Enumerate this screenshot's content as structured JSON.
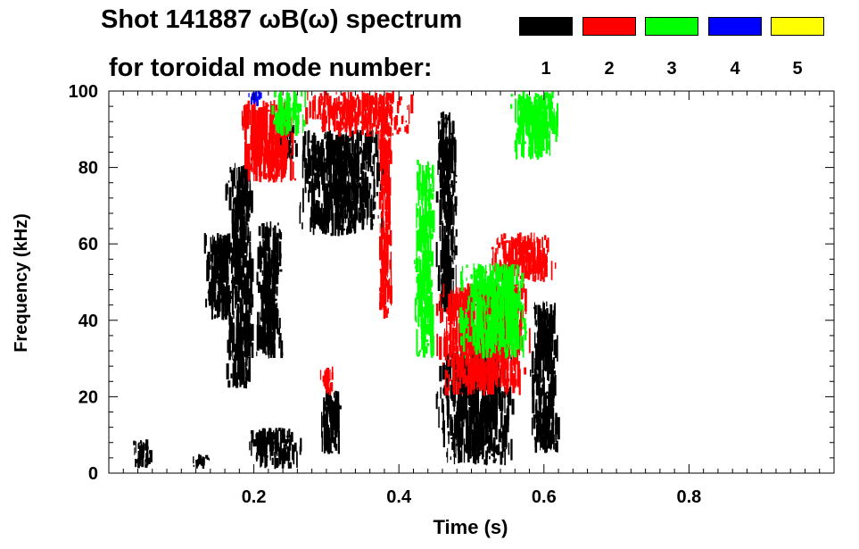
{
  "title_line1": "Shot 141887 ωB(ω) spectrum",
  "title_line2": "for toroidal mode number:",
  "legend": [
    {
      "label": "1",
      "color": "#000000"
    },
    {
      "label": "2",
      "color": "#ff0000"
    },
    {
      "label": "3",
      "color": "#00ff00"
    },
    {
      "label": "4",
      "color": "#0000ff"
    },
    {
      "label": "5",
      "color": "#ffff00"
    }
  ],
  "chart_data": {
    "type": "heatmap",
    "title": "Shot 141887 ωB(ω) spectrum",
    "xlabel": "Time (s)",
    "ylabel": "Frequency (kHz)",
    "xlim": [
      0.0,
      1.0
    ],
    "ylim": [
      0,
      100
    ],
    "xticks": [
      0.2,
      0.4,
      0.6,
      0.8
    ],
    "xtick_labels": [
      "0.2",
      "0.4",
      "0.6",
      "0.8"
    ],
    "yticks": [
      0,
      20,
      40,
      60,
      80,
      100
    ],
    "ytick_labels": [
      "0",
      "20",
      "40",
      "60",
      "80",
      "100"
    ],
    "legend_title": "toroidal mode number",
    "series": [
      {
        "name": "n=1",
        "color": "#000000",
        "regions": [
          {
            "t": [
              0.03,
              0.06
            ],
            "f": [
              1,
              9
            ]
          },
          {
            "t": [
              0.11,
              0.14
            ],
            "f": [
              1,
              5
            ]
          },
          {
            "t": [
              0.13,
              0.17
            ],
            "f": [
              40,
              63
            ]
          },
          {
            "t": [
              0.16,
              0.2
            ],
            "f": [
              22,
              82
            ]
          },
          {
            "t": [
              0.19,
              0.27
            ],
            "f": [
              1,
              12
            ]
          },
          {
            "t": [
              0.2,
              0.24
            ],
            "f": [
              30,
              66
            ]
          },
          {
            "t": [
              0.23,
              0.26
            ],
            "f": [
              82,
              92
            ]
          },
          {
            "t": [
              0.26,
              0.38
            ],
            "f": [
              62,
              90
            ]
          },
          {
            "t": [
              0.29,
              0.32
            ],
            "f": [
              5,
              22
            ]
          },
          {
            "t": [
              0.45,
              0.56
            ],
            "f": [
              2,
              32
            ]
          },
          {
            "t": [
              0.45,
              0.48
            ],
            "f": [
              40,
              95
            ]
          },
          {
            "t": [
              0.58,
              0.62
            ],
            "f": [
              5,
              45
            ]
          }
        ]
      },
      {
        "name": "n=2",
        "color": "#ff0000",
        "regions": [
          {
            "t": [
              0.18,
              0.26
            ],
            "f": [
              76,
              98
            ]
          },
          {
            "t": [
              0.26,
              0.42
            ],
            "f": [
              88,
              100
            ]
          },
          {
            "t": [
              0.29,
              0.31
            ],
            "f": [
              20,
              28
            ]
          },
          {
            "t": [
              0.37,
              0.39
            ],
            "f": [
              40,
              96
            ]
          },
          {
            "t": [
              0.45,
              0.58
            ],
            "f": [
              20,
              50
            ]
          },
          {
            "t": [
              0.52,
              0.62
            ],
            "f": [
              50,
              63
            ]
          }
        ]
      },
      {
        "name": "n=3",
        "color": "#00ff00",
        "regions": [
          {
            "t": [
              0.22,
              0.27
            ],
            "f": [
              88,
              100
            ]
          },
          {
            "t": [
              0.42,
              0.45
            ],
            "f": [
              30,
              82
            ]
          },
          {
            "t": [
              0.48,
              0.58
            ],
            "f": [
              30,
              55
            ]
          },
          {
            "t": [
              0.55,
              0.62
            ],
            "f": [
              82,
              100
            ]
          }
        ]
      },
      {
        "name": "n=4",
        "color": "#0000ff",
        "regions": [
          {
            "t": [
              0.19,
              0.21
            ],
            "f": [
              96,
              100
            ]
          }
        ]
      },
      {
        "name": "n=5",
        "color": "#ffff00",
        "regions": []
      }
    ]
  }
}
